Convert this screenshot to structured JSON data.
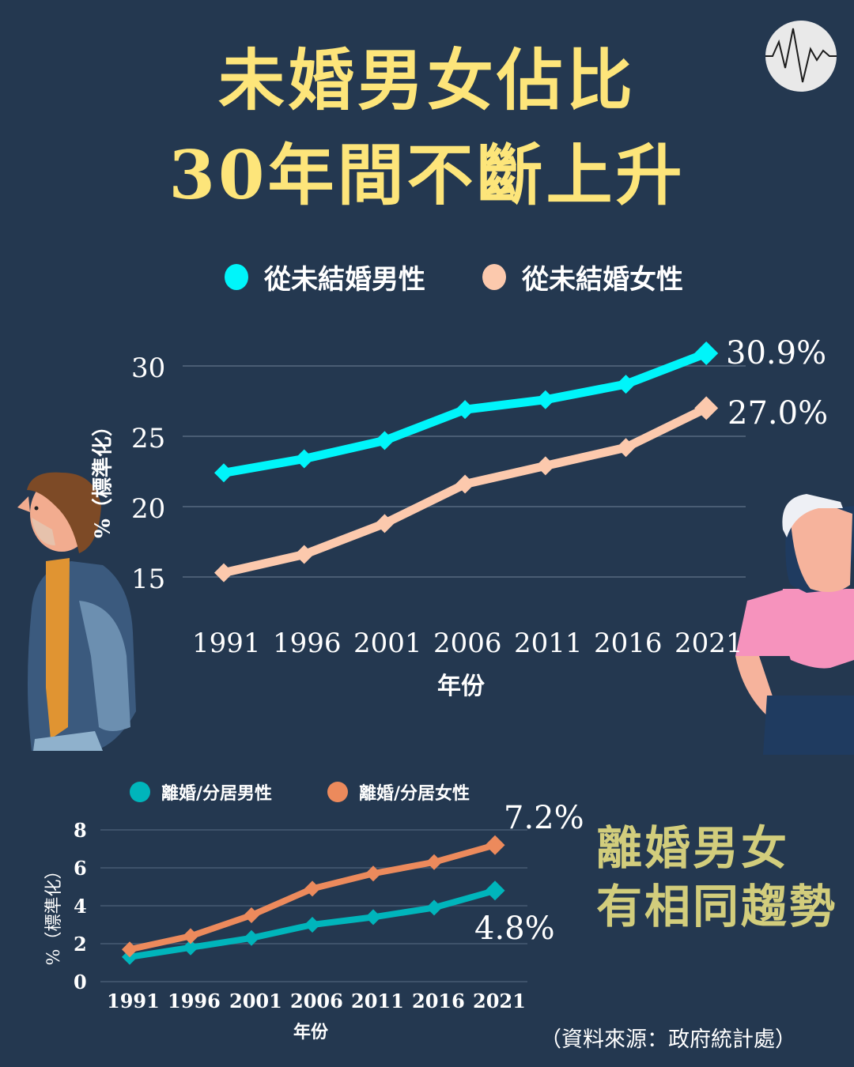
{
  "header": {
    "title_line1": "未婚男女佔比",
    "title_line2": "30年間不斷上升",
    "logo_icon": "waveform-icon"
  },
  "colors": {
    "background": "#243850",
    "title": "#fde57a",
    "never_married_male": "#00f5fa",
    "never_married_female": "#fcc9ad",
    "divorced_male": "#00b5bb",
    "divorced_female": "#ec8a5c",
    "subtitle": "#d2cd7c",
    "gridline": "#4a5d74"
  },
  "chart_data": [
    {
      "type": "line",
      "title": "未婚男女佔比 30年間不斷上升",
      "xlabel": "年份",
      "ylabel": "%（標準化）",
      "categories": [
        "1991",
        "1996",
        "2001",
        "2006",
        "2011",
        "2016",
        "2021"
      ],
      "yticks": [
        "30",
        "25",
        "20",
        "15"
      ],
      "ylim": [
        15,
        30
      ],
      "grid": true,
      "legend_position": "top",
      "series": [
        {
          "name": "從未結婚男性",
          "values": [
            22.4,
            23.4,
            24.7,
            26.9,
            27.6,
            28.7,
            30.9
          ],
          "end_label": "30.9%"
        },
        {
          "name": "從未結婚女性",
          "values": [
            15.3,
            16.6,
            18.8,
            21.6,
            22.9,
            24.2,
            27.0
          ],
          "end_label": "27.0%"
        }
      ]
    },
    {
      "type": "line",
      "title": "離婚男女 有相同趨勢",
      "xlabel": "年份",
      "ylabel": "%（標準化）",
      "categories": [
        "1991",
        "1996",
        "2001",
        "2006",
        "2011",
        "2016",
        "2021"
      ],
      "yticks": [
        "8",
        "6",
        "4",
        "2",
        "0"
      ],
      "ylim": [
        0,
        8
      ],
      "grid": true,
      "legend_position": "top",
      "series": [
        {
          "name": "離婚/分居男性",
          "values": [
            1.3,
            1.8,
            2.3,
            3.0,
            3.4,
            3.9,
            4.8
          ],
          "end_label": "4.8%"
        },
        {
          "name": "離婚/分居女性",
          "values": [
            1.7,
            2.4,
            3.5,
            4.9,
            5.7,
            6.3,
            7.2
          ],
          "end_label": "7.2%"
        }
      ]
    }
  ],
  "chart1": {
    "legend": [
      {
        "label": "從未結婚男性"
      },
      {
        "label": "從未結婚女性"
      }
    ],
    "yticks": [
      "30",
      "25",
      "20",
      "15"
    ],
    "xticks": [
      "1991",
      "1996",
      "2001",
      "2006",
      "2011",
      "2016",
      "2021"
    ],
    "xlabel": "年份",
    "ylabel": "%（標準化）",
    "male_end": "30.9%",
    "female_end": "27.0%"
  },
  "chart2": {
    "legend": [
      {
        "label": "離婚/分居男性"
      },
      {
        "label": "離婚/分居女性"
      }
    ],
    "yticks": [
      "8",
      "6",
      "4",
      "2",
      "0"
    ],
    "xticks": [
      "1991",
      "1996",
      "2001",
      "2006",
      "2011",
      "2016",
      "2021"
    ],
    "xlabel": "年份",
    "ylabel": "%（標準化）",
    "male_end": "4.8%",
    "female_end": "7.2%"
  },
  "subtitle": {
    "line1": "離婚男女",
    "line2": "有相同趨勢"
  },
  "source": "（資料來源：政府統計處）"
}
